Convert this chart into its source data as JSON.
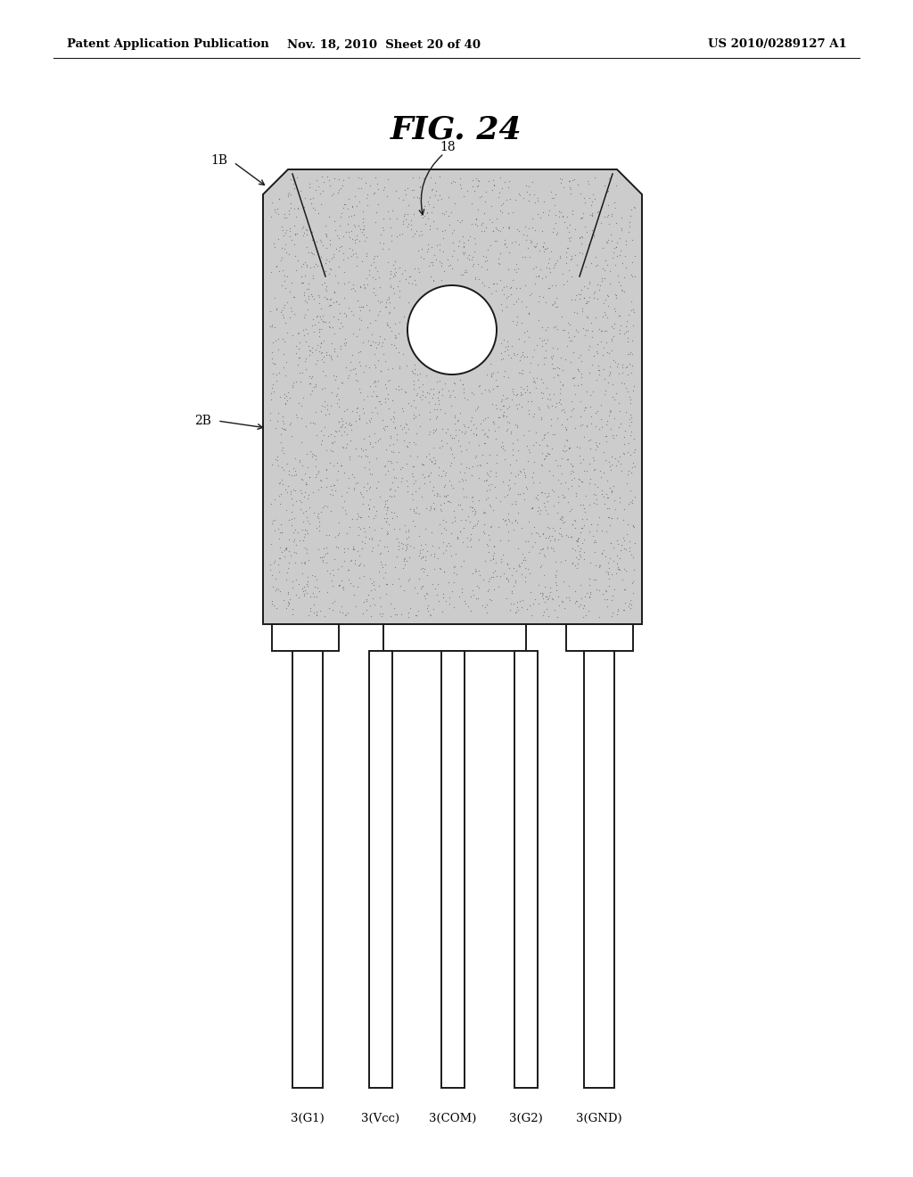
{
  "title": "FIG. 24",
  "header_left": "Patent Application Publication",
  "header_mid": "Nov. 18, 2010  Sheet 20 of 40",
  "header_right": "US 2010/0289127 A1",
  "bg_color": "#ffffff",
  "line_color": "#1a1a1a",
  "fill_color": "#cccccc",
  "pin_labels": [
    "3(G1)",
    "3(Vcc)",
    "3(COM)",
    "3(G2)",
    "3(GND)"
  ],
  "label_1B": "1B",
  "label_2B": "2B",
  "label_18": "18"
}
